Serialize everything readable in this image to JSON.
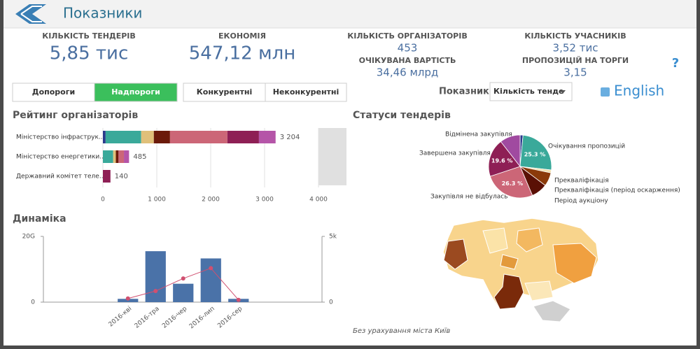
{
  "header": {
    "title": "Показники"
  },
  "kpis": [
    {
      "label": "КІЛЬКІСТЬ ТЕНДЕРІВ",
      "value": "5,85 тис"
    },
    {
      "label": "ЕКОНОМІЯ",
      "value": "547,12 млн"
    },
    {
      "label": "КІЛЬКІСТЬ ОРГАНІЗАТОРІВ",
      "value": "453"
    },
    {
      "label": "ОЧІКУВАНА ВАРТІСТЬ",
      "value": "34,46 млрд"
    },
    {
      "label": "КІЛЬКІСТЬ УЧАСНИКІВ",
      "value": "3,52 тис"
    },
    {
      "label": "ПРОПОЗИЦІЙ НА ТОРГИ",
      "value": "3,15"
    }
  ],
  "filters": {
    "buttons": [
      "Допороги",
      "Надпороги",
      "Конкурентні",
      "Неконкурентні"
    ],
    "indicator_label": "Показник",
    "indicator_value": "Кількість тенде",
    "language": "English",
    "help": "?"
  },
  "map": {
    "note": "Без урахування міста Київ"
  },
  "chart_data": [
    {
      "type": "bar",
      "orientation": "horizontal",
      "stacked": true,
      "title": "Рейтинг організаторів",
      "categories": [
        "Міністерство інфраструк...",
        "Міністерство енергетики...",
        "Державний комітет теле..."
      ],
      "series": [
        {
          "color": "#2b3a8c",
          "values": [
            50,
            0,
            0
          ]
        },
        {
          "color": "#3aa99a",
          "values": [
            660,
            190,
            0
          ]
        },
        {
          "color": "#e0c07a",
          "values": [
            235,
            50,
            0
          ]
        },
        {
          "color": "#6b1a0a",
          "values": [
            300,
            50,
            0
          ]
        },
        {
          "color": "#cc6677",
          "values": [
            1065,
            100,
            0
          ]
        },
        {
          "color": "#8e1f55",
          "values": [
            585,
            0,
            140
          ]
        },
        {
          "color": "#b555a8",
          "values": [
            309,
            95,
            0
          ]
        }
      ],
      "totals": [
        3204,
        485,
        140
      ],
      "total_labels": [
        "3 204",
        "485",
        "140"
      ],
      "xlim": [
        0,
        4000
      ],
      "xticks": [
        0,
        {
          "value": 1000,
          "label": "1 000"
        },
        {
          "value": 2000,
          "label": "2 000"
        },
        {
          "value": 3000,
          "label": "3 000"
        },
        {
          "value": 4000,
          "label": "4 000"
        }
      ],
      "grid": true
    },
    {
      "type": "pie",
      "title": "Статуси тендерів",
      "categories": [
        null,
        "Очікування пропозицій",
        "Прекваліфікація",
        "Прекваліфікація (період оскарження)",
        "Період аукціону",
        "Закупівля не відбулась",
        "Завершена закупівля",
        "Відмінена закупівля"
      ],
      "values": [
        1.5,
        25.3,
        1.5,
        7,
        8.3,
        26.3,
        19.6,
        10.5
      ],
      "value_labels": [
        null,
        "25.3 %",
        null,
        null,
        null,
        "26.3 %",
        "19.6 %",
        null
      ],
      "colors": [
        "#2b3a8c",
        "#3aa99a",
        "#f0e0b0",
        "#8b3a0a",
        "#5a1005",
        "#cc6677",
        "#8e1f55",
        "#a04aa0"
      ]
    },
    {
      "type": "combo",
      "title": "Динаміка",
      "categories": [
        "2016-кві",
        "2016-тра",
        "2016-чер",
        "2016-лип",
        "2016-сер"
      ],
      "series": [
        {
          "type": "bar",
          "color": "#4a72a8",
          "values": [
            1000000000,
            15500000000,
            5600000000,
            13300000000,
            1000000000
          ]
        },
        {
          "type": "line",
          "axis": "y2",
          "color": "#d05070",
          "values": [
            280,
            843,
            1800,
            2584,
            170
          ]
        }
      ],
      "ylim": [
        0,
        20000000000
      ],
      "yticks": [
        0,
        {
          "value": 20000000000,
          "label": "20G"
        }
      ],
      "y2lim": [
        0,
        5000
      ],
      "y2ticks": [
        0,
        {
          "value": 5000,
          "label": "5k"
        }
      ]
    }
  ]
}
